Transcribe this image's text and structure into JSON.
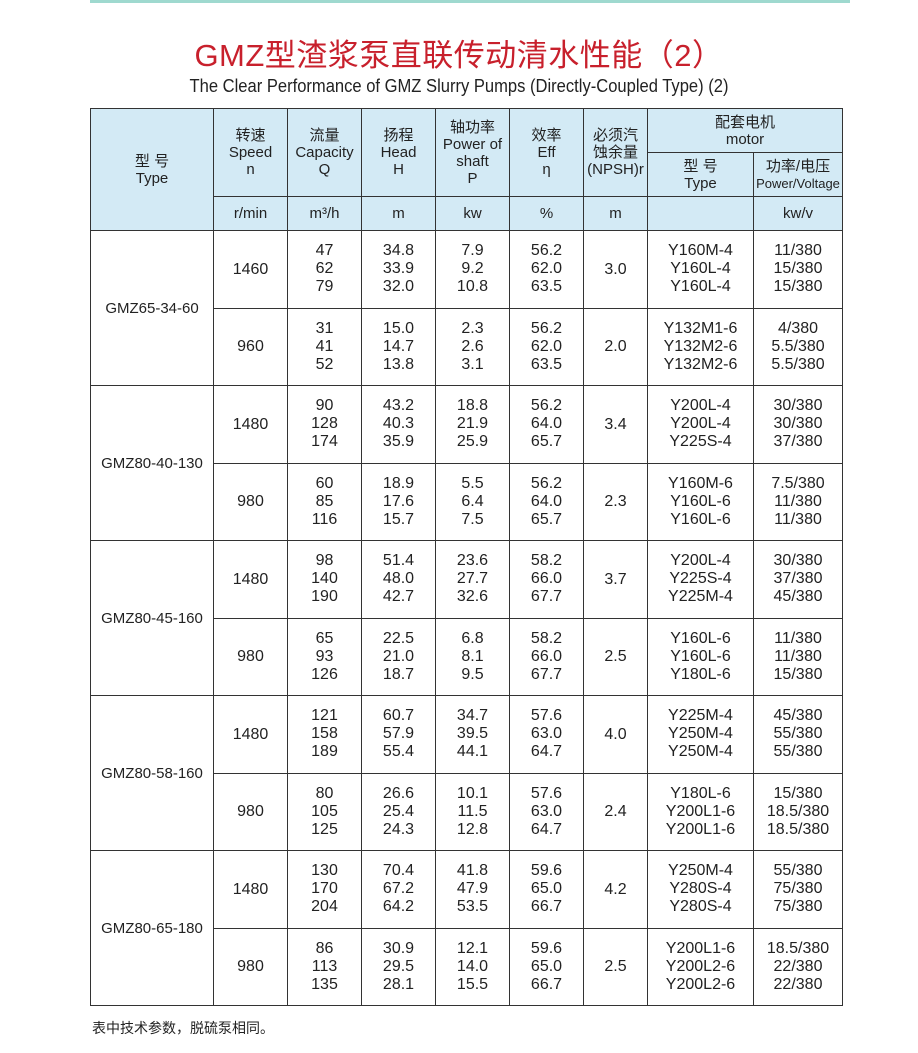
{
  "title": "GMZ型渣浆泵直联传动清水性能（2）",
  "subtitle": "The Clear Performance of GMZ Slurry Pumps (Directly-Coupled Type) (2)",
  "header": {
    "type_cn": "型 号",
    "type_en": "Type",
    "speed_cn": "转速",
    "speed_en": "Speed",
    "speed_sym": "n",
    "speed_unit": "r/min",
    "cap_cn": "流量",
    "cap_en": "Capacity",
    "cap_sym": "Q",
    "cap_unit": "m³/h",
    "head_cn": "扬程",
    "head_en": "Head",
    "head_sym": "H",
    "head_unit": "m",
    "power_cn": "轴功率",
    "power_en": "Power of",
    "power_en2": "shaft",
    "power_sym": "P",
    "power_unit": "kw",
    "eff_cn": "效率",
    "eff_en": "Eff",
    "eff_sym": "η",
    "eff_unit": "%",
    "npsh_cn": "必须汽",
    "npsh_cn2": "蚀余量",
    "npsh_en": "(NPSH)r",
    "npsh_unit": "m",
    "motor_cn": "配套电机",
    "motor_en": "motor",
    "mtype_cn": "型 号",
    "mtype_en": "Type",
    "mpower_cn": "功率/电压",
    "mpower_en": "Power/Voltage",
    "mpower_unit": "kw/v"
  },
  "models": [
    {
      "name": "GMZ65-34-60",
      "groups": [
        {
          "speed": "1460",
          "npsh": "3.0",
          "q": [
            "47",
            "62",
            "79"
          ],
          "h": [
            "34.8",
            "33.9",
            "32.0"
          ],
          "p": [
            "7.9",
            "9.2",
            "10.8"
          ],
          "eff": [
            "56.2",
            "62.0",
            "63.5"
          ],
          "motor": [
            "Y160M-4",
            "Y160L-4",
            "Y160L-4"
          ],
          "pv": [
            "11/380",
            "15/380",
            "15/380"
          ]
        },
        {
          "speed": "960",
          "npsh": "2.0",
          "q": [
            "31",
            "41",
            "52"
          ],
          "h": [
            "15.0",
            "14.7",
            "13.8"
          ],
          "p": [
            "2.3",
            "2.6",
            "3.1"
          ],
          "eff": [
            "56.2",
            "62.0",
            "63.5"
          ],
          "motor": [
            "Y132M1-6",
            "Y132M2-6",
            "Y132M2-6"
          ],
          "pv": [
            "4/380",
            "5.5/380",
            "5.5/380"
          ]
        }
      ]
    },
    {
      "name": "GMZ80-40-130",
      "groups": [
        {
          "speed": "1480",
          "npsh": "3.4",
          "q": [
            "90",
            "128",
            "174"
          ],
          "h": [
            "43.2",
            "40.3",
            "35.9"
          ],
          "p": [
            "18.8",
            "21.9",
            "25.9"
          ],
          "eff": [
            "56.2",
            "64.0",
            "65.7"
          ],
          "motor": [
            "Y200L-4",
            "Y200L-4",
            "Y225S-4"
          ],
          "pv": [
            "30/380",
            "30/380",
            "37/380"
          ]
        },
        {
          "speed": "980",
          "npsh": "2.3",
          "q": [
            "60",
            "85",
            "116"
          ],
          "h": [
            "18.9",
            "17.6",
            "15.7"
          ],
          "p": [
            "5.5",
            "6.4",
            "7.5"
          ],
          "eff": [
            "56.2",
            "64.0",
            "65.7"
          ],
          "motor": [
            "Y160M-6",
            "Y160L-6",
            "Y160L-6"
          ],
          "pv": [
            "7.5/380",
            "11/380",
            "11/380"
          ]
        }
      ]
    },
    {
      "name": "GMZ80-45-160",
      "groups": [
        {
          "speed": "1480",
          "npsh": "3.7",
          "q": [
            "98",
            "140",
            "190"
          ],
          "h": [
            "51.4",
            "48.0",
            "42.7"
          ],
          "p": [
            "23.6",
            "27.7",
            "32.6"
          ],
          "eff": [
            "58.2",
            "66.0",
            "67.7"
          ],
          "motor": [
            "Y200L-4",
            "Y225S-4",
            "Y225M-4"
          ],
          "pv": [
            "30/380",
            "37/380",
            "45/380"
          ]
        },
        {
          "speed": "980",
          "npsh": "2.5",
          "q": [
            "65",
            "93",
            "126"
          ],
          "h": [
            "22.5",
            "21.0",
            "18.7"
          ],
          "p": [
            "6.8",
            "8.1",
            "9.5"
          ],
          "eff": [
            "58.2",
            "66.0",
            "67.7"
          ],
          "motor": [
            "Y160L-6",
            "Y160L-6",
            "Y180L-6"
          ],
          "pv": [
            "11/380",
            "11/380",
            "15/380"
          ]
        }
      ]
    },
    {
      "name": "GMZ80-58-160",
      "groups": [
        {
          "speed": "1480",
          "npsh": "4.0",
          "q": [
            "121",
            "158",
            "189"
          ],
          "h": [
            "60.7",
            "57.9",
            "55.4"
          ],
          "p": [
            "34.7",
            "39.5",
            "44.1"
          ],
          "eff": [
            "57.6",
            "63.0",
            "64.7"
          ],
          "motor": [
            "Y225M-4",
            "Y250M-4",
            "Y250M-4"
          ],
          "pv": [
            "45/380",
            "55/380",
            "55/380"
          ]
        },
        {
          "speed": "980",
          "npsh": "2.4",
          "q": [
            "80",
            "105",
            "125"
          ],
          "h": [
            "26.6",
            "25.4",
            "24.3"
          ],
          "p": [
            "10.1",
            "11.5",
            "12.8"
          ],
          "eff": [
            "57.6",
            "63.0",
            "64.7"
          ],
          "motor": [
            "Y180L-6",
            "Y200L1-6",
            "Y200L1-6"
          ],
          "pv": [
            "15/380",
            "18.5/380",
            "18.5/380"
          ]
        }
      ]
    },
    {
      "name": "GMZ80-65-180",
      "groups": [
        {
          "speed": "1480",
          "npsh": "4.2",
          "q": [
            "130",
            "170",
            "204"
          ],
          "h": [
            "70.4",
            "67.2",
            "64.2"
          ],
          "p": [
            "41.8",
            "47.9",
            "53.5"
          ],
          "eff": [
            "59.6",
            "65.0",
            "66.7"
          ],
          "motor": [
            "Y250M-4",
            "Y280S-4",
            "Y280S-4"
          ],
          "pv": [
            "55/380",
            "75/380",
            "75/380"
          ]
        },
        {
          "speed": "980",
          "npsh": "2.5",
          "q": [
            "86",
            "113",
            "135"
          ],
          "h": [
            "30.9",
            "29.5",
            "28.1"
          ],
          "p": [
            "12.1",
            "14.0",
            "15.5"
          ],
          "eff": [
            "59.6",
            "65.0",
            "66.7"
          ],
          "motor": [
            "Y200L1-6",
            "Y200L2-6",
            "Y200L2-6"
          ],
          "pv": [
            "18.5/380",
            "22/380",
            "22/380"
          ]
        }
      ]
    }
  ],
  "footer": "表中技术参数，脱硫泵相同。",
  "colors": {
    "title": "#c8202c",
    "header_bg": "#d3eaf5",
    "top_line": "#9fd9cf"
  }
}
